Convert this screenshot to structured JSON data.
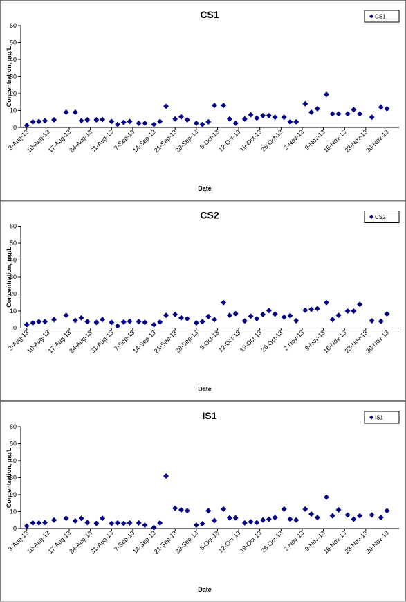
{
  "chart_data": [
    {
      "type": "scatter",
      "title": "CS1",
      "x_label": "Date",
      "y_label": "Concentration, mg/L",
      "legend": "upper right",
      "x": [
        "2013-08-03",
        "2013-08-05",
        "2013-08-07",
        "2013-08-09",
        "2013-08-12",
        "2013-08-16",
        "2013-08-19",
        "2013-08-21",
        "2013-08-23",
        "2013-08-26",
        "2013-08-28",
        "2013-08-31",
        "2013-09-02",
        "2013-09-04",
        "2013-09-06",
        "2013-09-09",
        "2013-09-11",
        "2013-09-14",
        "2013-09-16",
        "2013-09-18",
        "2013-09-21",
        "2013-09-23",
        "2013-09-25",
        "2013-09-28",
        "2013-09-30",
        "2013-10-02",
        "2013-10-04",
        "2013-10-07",
        "2013-10-09",
        "2013-10-11",
        "2013-10-14",
        "2013-10-16",
        "2013-10-18",
        "2013-10-20",
        "2013-10-22",
        "2013-10-24",
        "2013-10-27",
        "2013-10-29",
        "2013-10-31",
        "2013-11-03",
        "2013-11-05",
        "2013-11-07",
        "2013-11-10",
        "2013-11-12",
        "2013-11-14",
        "2013-11-17",
        "2013-11-19",
        "2013-11-21",
        "2013-11-25",
        "2013-11-28",
        "2013-11-30"
      ],
      "series": [
        {
          "name": "CS1",
          "color": "#000080",
          "values": [
            1.2,
            3.3,
            3.5,
            4,
            4.5,
            9,
            9,
            4,
            4.5,
            4.5,
            4.7,
            3.5,
            1.8,
            3,
            3.5,
            2.5,
            2.5,
            1.8,
            3.5,
            12.5,
            5,
            6.3,
            4.5,
            2.5,
            1.8,
            3.3,
            13,
            13,
            5,
            2.5,
            5,
            7.5,
            5.5,
            7,
            7,
            6,
            6,
            3.3,
            3.3,
            14,
            9,
            11,
            19.5,
            8,
            8,
            8,
            10.5,
            8,
            6,
            12,
            11
          ]
        }
      ],
      "xlim": [
        "2013-08-01",
        "2013-12-04"
      ],
      "xticks": [
        {
          "value": "2013-08-03",
          "label": "3-Aug-13"
        },
        {
          "value": "2013-08-10",
          "label": "10-Aug-13"
        },
        {
          "value": "2013-08-17",
          "label": "17-Aug-13"
        },
        {
          "value": "2013-08-24",
          "label": "24-Aug-13"
        },
        {
          "value": "2013-08-31",
          "label": "31-Aug-13"
        },
        {
          "value": "2013-09-07",
          "label": "7-Sep-13"
        },
        {
          "value": "2013-09-14",
          "label": "14-Sep-13"
        },
        {
          "value": "2013-09-21",
          "label": "21-Sep-13"
        },
        {
          "value": "2013-09-28",
          "label": "28-Sep-13"
        },
        {
          "value": "2013-10-05",
          "label": "5-Oct-13"
        },
        {
          "value": "2013-10-12",
          "label": "12-Oct-13"
        },
        {
          "value": "2013-10-19",
          "label": "19-Oct-13"
        },
        {
          "value": "2013-10-26",
          "label": "26-Oct-13"
        },
        {
          "value": "2013-11-02",
          "label": "2-Nov-13"
        },
        {
          "value": "2013-11-09",
          "label": "9-Nov-13"
        },
        {
          "value": "2013-11-16",
          "label": "16-Nov-13"
        },
        {
          "value": "2013-11-23",
          "label": "23-Nov-13"
        },
        {
          "value": "2013-11-30",
          "label": "30-Nov-13"
        }
      ],
      "ylim": [
        0,
        60
      ],
      "yticks": [
        0,
        10,
        20,
        30,
        40,
        50,
        60
      ]
    },
    {
      "type": "scatter",
      "title": "CS2",
      "x_label": "Date",
      "y_label": "Concentration, mg/L",
      "legend": "upper right",
      "x": [
        "2013-08-03",
        "2013-08-05",
        "2013-08-07",
        "2013-08-09",
        "2013-08-12",
        "2013-08-16",
        "2013-08-19",
        "2013-08-21",
        "2013-08-23",
        "2013-08-26",
        "2013-08-28",
        "2013-08-31",
        "2013-09-02",
        "2013-09-04",
        "2013-09-06",
        "2013-09-09",
        "2013-09-11",
        "2013-09-14",
        "2013-09-16",
        "2013-09-18",
        "2013-09-21",
        "2013-09-23",
        "2013-09-25",
        "2013-09-28",
        "2013-09-30",
        "2013-10-02",
        "2013-10-04",
        "2013-10-07",
        "2013-10-09",
        "2013-10-11",
        "2013-10-14",
        "2013-10-16",
        "2013-10-18",
        "2013-10-20",
        "2013-10-22",
        "2013-10-24",
        "2013-10-27",
        "2013-10-29",
        "2013-10-31",
        "2013-11-03",
        "2013-11-05",
        "2013-11-07",
        "2013-11-10",
        "2013-11-12",
        "2013-11-14",
        "2013-11-17",
        "2013-11-19",
        "2013-11-21",
        "2013-11-25",
        "2013-11-28",
        "2013-11-30"
      ],
      "series": [
        {
          "name": "CS2",
          "color": "#000080",
          "values": [
            2,
            3,
            3.8,
            3.8,
            5,
            7.5,
            4.5,
            6,
            3.8,
            3.3,
            5,
            3.3,
            1.2,
            3.5,
            4,
            3.8,
            3.3,
            2,
            3.5,
            7.5,
            8,
            6,
            5.5,
            3,
            3.8,
            6.8,
            5,
            15,
            7.5,
            8.5,
            4.2,
            7,
            5.5,
            8,
            10.3,
            8.2,
            6.5,
            7.3,
            4.3,
            10.5,
            11,
            11.5,
            15,
            5,
            7.5,
            10,
            10,
            14,
            4.3,
            4,
            8.3
          ]
        }
      ],
      "xlim": [
        "2013-08-01",
        "2013-12-04"
      ],
      "xticks": [
        {
          "value": "2013-08-03",
          "label": "3-Aug-13"
        },
        {
          "value": "2013-08-10",
          "label": "10-Aug-13"
        },
        {
          "value": "2013-08-17",
          "label": "17-Aug-13"
        },
        {
          "value": "2013-08-24",
          "label": "24-Aug-13"
        },
        {
          "value": "2013-08-31",
          "label": "31-Aug-13"
        },
        {
          "value": "2013-09-07",
          "label": "7-Sep-13"
        },
        {
          "value": "2013-09-14",
          "label": "14-Sep-13"
        },
        {
          "value": "2013-09-21",
          "label": "21-Sep-13"
        },
        {
          "value": "2013-09-28",
          "label": "28-Sep-13"
        },
        {
          "value": "2013-10-05",
          "label": "5-Oct-13"
        },
        {
          "value": "2013-10-12",
          "label": "12-Oct-13"
        },
        {
          "value": "2013-10-19",
          "label": "19-Oct-13"
        },
        {
          "value": "2013-10-26",
          "label": "26-Oct-13"
        },
        {
          "value": "2013-11-02",
          "label": "2-Nov-13"
        },
        {
          "value": "2013-11-09",
          "label": "9-Nov-13"
        },
        {
          "value": "2013-11-16",
          "label": "16-Nov-13"
        },
        {
          "value": "2013-11-23",
          "label": "23-Nov-13"
        },
        {
          "value": "2013-11-30",
          "label": "30-Nov-13"
        }
      ],
      "ylim": [
        0,
        60
      ],
      "yticks": [
        0,
        10,
        20,
        30,
        40,
        50,
        60
      ]
    },
    {
      "type": "scatter",
      "title": "IS1",
      "x_label": "Date",
      "y_label": "Concentration, mg/L",
      "legend": "upper right",
      "x": [
        "2013-08-03",
        "2013-08-05",
        "2013-08-07",
        "2013-08-09",
        "2013-08-12",
        "2013-08-16",
        "2013-08-19",
        "2013-08-21",
        "2013-08-23",
        "2013-08-26",
        "2013-08-28",
        "2013-08-31",
        "2013-09-02",
        "2013-09-04",
        "2013-09-06",
        "2013-09-09",
        "2013-09-11",
        "2013-09-14",
        "2013-09-16",
        "2013-09-18",
        "2013-09-21",
        "2013-09-23",
        "2013-09-25",
        "2013-09-28",
        "2013-09-30",
        "2013-10-02",
        "2013-10-04",
        "2013-10-07",
        "2013-10-09",
        "2013-10-11",
        "2013-10-14",
        "2013-10-16",
        "2013-10-18",
        "2013-10-20",
        "2013-10-22",
        "2013-10-24",
        "2013-10-27",
        "2013-10-29",
        "2013-10-31",
        "2013-11-03",
        "2013-11-05",
        "2013-11-07",
        "2013-11-10",
        "2013-11-12",
        "2013-11-14",
        "2013-11-17",
        "2013-11-19",
        "2013-11-21",
        "2013-11-25",
        "2013-11-28",
        "2013-11-30"
      ],
      "series": [
        {
          "name": "IS1",
          "color": "#000080",
          "values": [
            1.5,
            3.3,
            3.3,
            3.5,
            5,
            6,
            4.5,
            6,
            3.5,
            3,
            6,
            3,
            3.3,
            3,
            3.3,
            3.3,
            2,
            0.5,
            3.3,
            31,
            12,
            11,
            10.5,
            2,
            2.8,
            10.5,
            4.7,
            11.5,
            6.3,
            6.3,
            3.3,
            4,
            3.5,
            5,
            5.5,
            6.5,
            11.5,
            5.5,
            5,
            11.5,
            8.5,
            6.5,
            18.5,
            7.5,
            11,
            8,
            5.5,
            7.5,
            8,
            6.5,
            10.5
          ]
        }
      ],
      "xlim": [
        "2013-08-01",
        "2013-12-04"
      ],
      "xticks": [
        {
          "value": "2013-08-03",
          "label": "3-Aug-13"
        },
        {
          "value": "2013-08-10",
          "label": "10-Aug-13"
        },
        {
          "value": "2013-08-17",
          "label": "17-Aug-13"
        },
        {
          "value": "2013-08-24",
          "label": "24-Aug-13"
        },
        {
          "value": "2013-08-31",
          "label": "31-Aug-13"
        },
        {
          "value": "2013-09-07",
          "label": "7-Sep-13"
        },
        {
          "value": "2013-09-14",
          "label": "14-Sep-13"
        },
        {
          "value": "2013-09-21",
          "label": "21-Sep-13"
        },
        {
          "value": "2013-09-28",
          "label": "28-Sep-13"
        },
        {
          "value": "2013-10-05",
          "label": "5-Oct-13"
        },
        {
          "value": "2013-10-12",
          "label": "12-Oct-13"
        },
        {
          "value": "2013-10-19",
          "label": "19-Oct-13"
        },
        {
          "value": "2013-10-26",
          "label": "26-Oct-13"
        },
        {
          "value": "2013-11-02",
          "label": "2-Nov-13"
        },
        {
          "value": "2013-11-09",
          "label": "9-Nov-13"
        },
        {
          "value": "2013-11-16",
          "label": "16-Nov-13"
        },
        {
          "value": "2013-11-23",
          "label": "23-Nov-13"
        },
        {
          "value": "2013-11-30",
          "label": "30-Nov-13"
        }
      ],
      "ylim": [
        0,
        60
      ],
      "yticks": [
        0,
        10,
        20,
        30,
        40,
        50,
        60
      ]
    }
  ]
}
